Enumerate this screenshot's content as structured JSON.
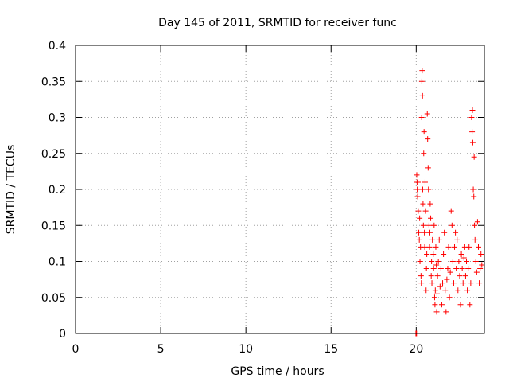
{
  "chart_data": {
    "type": "scatter",
    "title": "Day 145 of 2011, SRMTID for receiver func",
    "xlabel": "GPS time / hours",
    "ylabel": "SRMTID / TECUs",
    "xlim": [
      0,
      24
    ],
    "ylim": [
      0,
      0.4
    ],
    "x_ticks": [
      0,
      5,
      10,
      15,
      20
    ],
    "x_tick_labels": [
      "0",
      "5",
      "10",
      "15",
      "20"
    ],
    "y_ticks": [
      0,
      0.05,
      0.1,
      0.15,
      0.2,
      0.25,
      0.3,
      0.35,
      0.4
    ],
    "y_tick_labels": [
      "0",
      "0.05",
      "0.1",
      "0.15",
      "0.2",
      "0.25",
      "0.3",
      "0.35",
      "0.4"
    ],
    "grid": true,
    "marker": "plus",
    "color": "#ff0000",
    "series": [
      {
        "points": [
          [
            19.98,
            0.0
          ],
          [
            20.0,
            0.0
          ],
          [
            20.02,
            0.0
          ],
          [
            20.03,
            0.22
          ],
          [
            20.05,
            0.21
          ],
          [
            20.06,
            0.2
          ],
          [
            20.08,
            0.19
          ],
          [
            20.1,
            0.21
          ],
          [
            20.12,
            0.17
          ],
          [
            20.15,
            0.14
          ],
          [
            20.18,
            0.13
          ],
          [
            20.2,
            0.16
          ],
          [
            20.22,
            0.1
          ],
          [
            20.25,
            0.12
          ],
          [
            20.28,
            0.08
          ],
          [
            20.3,
            0.07
          ],
          [
            20.32,
            0.3
          ],
          [
            20.33,
            0.35
          ],
          [
            20.35,
            0.365
          ],
          [
            20.37,
            0.33
          ],
          [
            20.38,
            0.2
          ],
          [
            20.4,
            0.18
          ],
          [
            20.42,
            0.15
          ],
          [
            20.44,
            0.25
          ],
          [
            20.46,
            0.28
          ],
          [
            20.48,
            0.14
          ],
          [
            20.5,
            0.12
          ],
          [
            20.52,
            0.21
          ],
          [
            20.55,
            0.17
          ],
          [
            20.58,
            0.06
          ],
          [
            20.6,
            0.09
          ],
          [
            20.62,
            0.11
          ],
          [
            20.65,
            0.305
          ],
          [
            20.67,
            0.27
          ],
          [
            20.7,
            0.23
          ],
          [
            20.72,
            0.2
          ],
          [
            20.75,
            0.15
          ],
          [
            20.78,
            0.12
          ],
          [
            20.8,
            0.14
          ],
          [
            20.82,
            0.18
          ],
          [
            20.85,
            0.16
          ],
          [
            20.88,
            0.08
          ],
          [
            20.9,
            0.1
          ],
          [
            20.92,
            0.07
          ],
          [
            20.95,
            0.13
          ],
          [
            21.0,
            0.11
          ],
          [
            21.02,
            0.09
          ],
          [
            21.05,
            0.15
          ],
          [
            21.08,
            0.05
          ],
          [
            21.1,
            0.04
          ],
          [
            21.12,
            0.06
          ],
          [
            21.15,
            0.12
          ],
          [
            21.18,
            0.095
          ],
          [
            21.2,
            0.03
          ],
          [
            21.22,
            0.055
          ],
          [
            21.25,
            0.08
          ],
          [
            21.3,
            0.1
          ],
          [
            21.35,
            0.13
          ],
          [
            21.4,
            0.065
          ],
          [
            21.45,
            0.09
          ],
          [
            21.5,
            0.04
          ],
          [
            21.55,
            0.07
          ],
          [
            21.6,
            0.11
          ],
          [
            21.65,
            0.14
          ],
          [
            21.7,
            0.06
          ],
          [
            21.75,
            0.03
          ],
          [
            21.8,
            0.075
          ],
          [
            21.85,
            0.09
          ],
          [
            21.9,
            0.12
          ],
          [
            21.95,
            0.05
          ],
          [
            22.0,
            0.085
          ],
          [
            22.05,
            0.17
          ],
          [
            22.1,
            0.15
          ],
          [
            22.15,
            0.1
          ],
          [
            22.2,
            0.07
          ],
          [
            22.25,
            0.12
          ],
          [
            22.3,
            0.14
          ],
          [
            22.35,
            0.09
          ],
          [
            22.4,
            0.13
          ],
          [
            22.45,
            0.06
          ],
          [
            22.5,
            0.1
          ],
          [
            22.55,
            0.08
          ],
          [
            22.6,
            0.04
          ],
          [
            22.65,
            0.11
          ],
          [
            22.7,
            0.09
          ],
          [
            22.75,
            0.07
          ],
          [
            22.8,
            0.105
          ],
          [
            22.85,
            0.12
          ],
          [
            22.9,
            0.08
          ],
          [
            22.95,
            0.1
          ],
          [
            23.0,
            0.06
          ],
          [
            23.05,
            0.09
          ],
          [
            23.1,
            0.12
          ],
          [
            23.15,
            0.04
          ],
          [
            23.2,
            0.07
          ],
          [
            23.25,
            0.3
          ],
          [
            23.28,
            0.28
          ],
          [
            23.3,
            0.31
          ],
          [
            23.32,
            0.265
          ],
          [
            23.35,
            0.2
          ],
          [
            23.38,
            0.19
          ],
          [
            23.4,
            0.245
          ],
          [
            23.42,
            0.15
          ],
          [
            23.45,
            0.13
          ],
          [
            23.5,
            0.1
          ],
          [
            23.55,
            0.085
          ],
          [
            23.6,
            0.155
          ],
          [
            23.65,
            0.12
          ],
          [
            23.7,
            0.07
          ],
          [
            23.75,
            0.09
          ],
          [
            23.8,
            0.11
          ],
          [
            23.85,
            0.095
          ]
        ]
      }
    ]
  }
}
